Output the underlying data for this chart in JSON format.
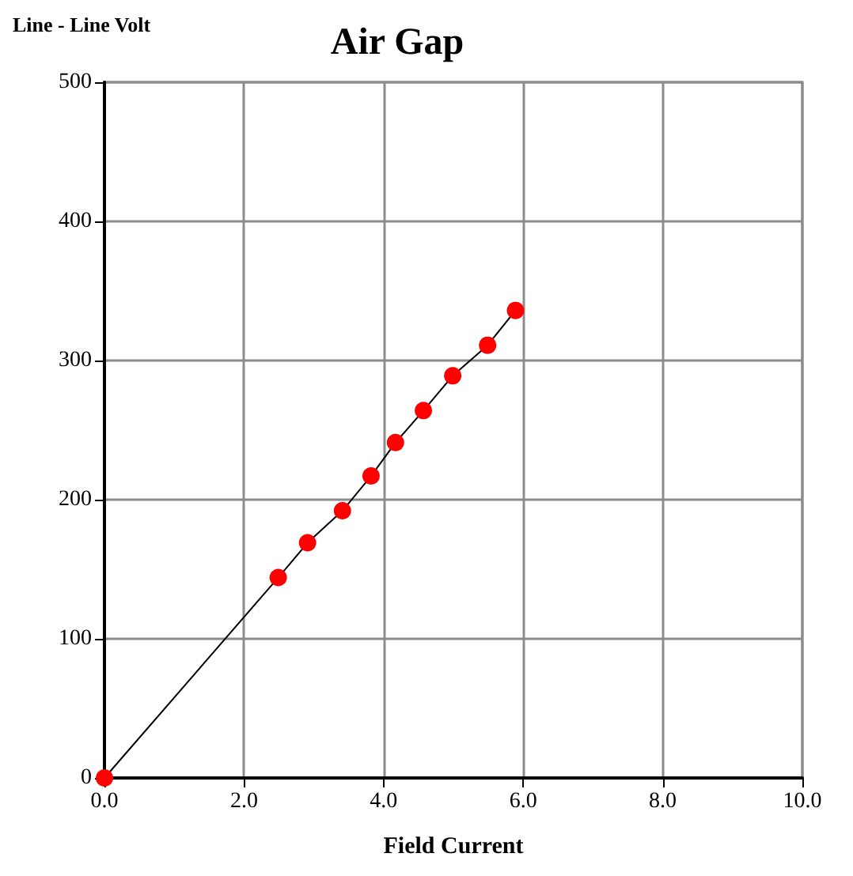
{
  "chart_data": {
    "type": "line",
    "title": "Air Gap",
    "xlabel": "Field Current",
    "ylabel": "Line - Line Volt",
    "x": [
      0,
      2.49,
      2.91,
      3.41,
      3.82,
      4.17,
      4.57,
      4.99,
      5.49,
      5.89
    ],
    "series": [
      {
        "color": "#ff0000",
        "values": [
          0,
          144,
          169,
          192,
          217,
          241,
          264,
          289,
          311,
          336
        ]
      }
    ],
    "xlim": [
      0,
      10
    ],
    "xticks": [
      {
        "value": 0,
        "label": "0.0"
      },
      {
        "value": 2,
        "label": "2.0"
      },
      {
        "value": 4,
        "label": "4.0"
      },
      {
        "value": 6,
        "label": "6.0"
      },
      {
        "value": 8,
        "label": "8.0"
      },
      {
        "value": 10,
        "label": "10.0"
      }
    ],
    "ylim": [
      0,
      500
    ],
    "yticks": [
      0,
      100,
      200,
      300,
      400,
      500
    ],
    "grid": true,
    "marker": "circle",
    "line_style": "solid"
  }
}
